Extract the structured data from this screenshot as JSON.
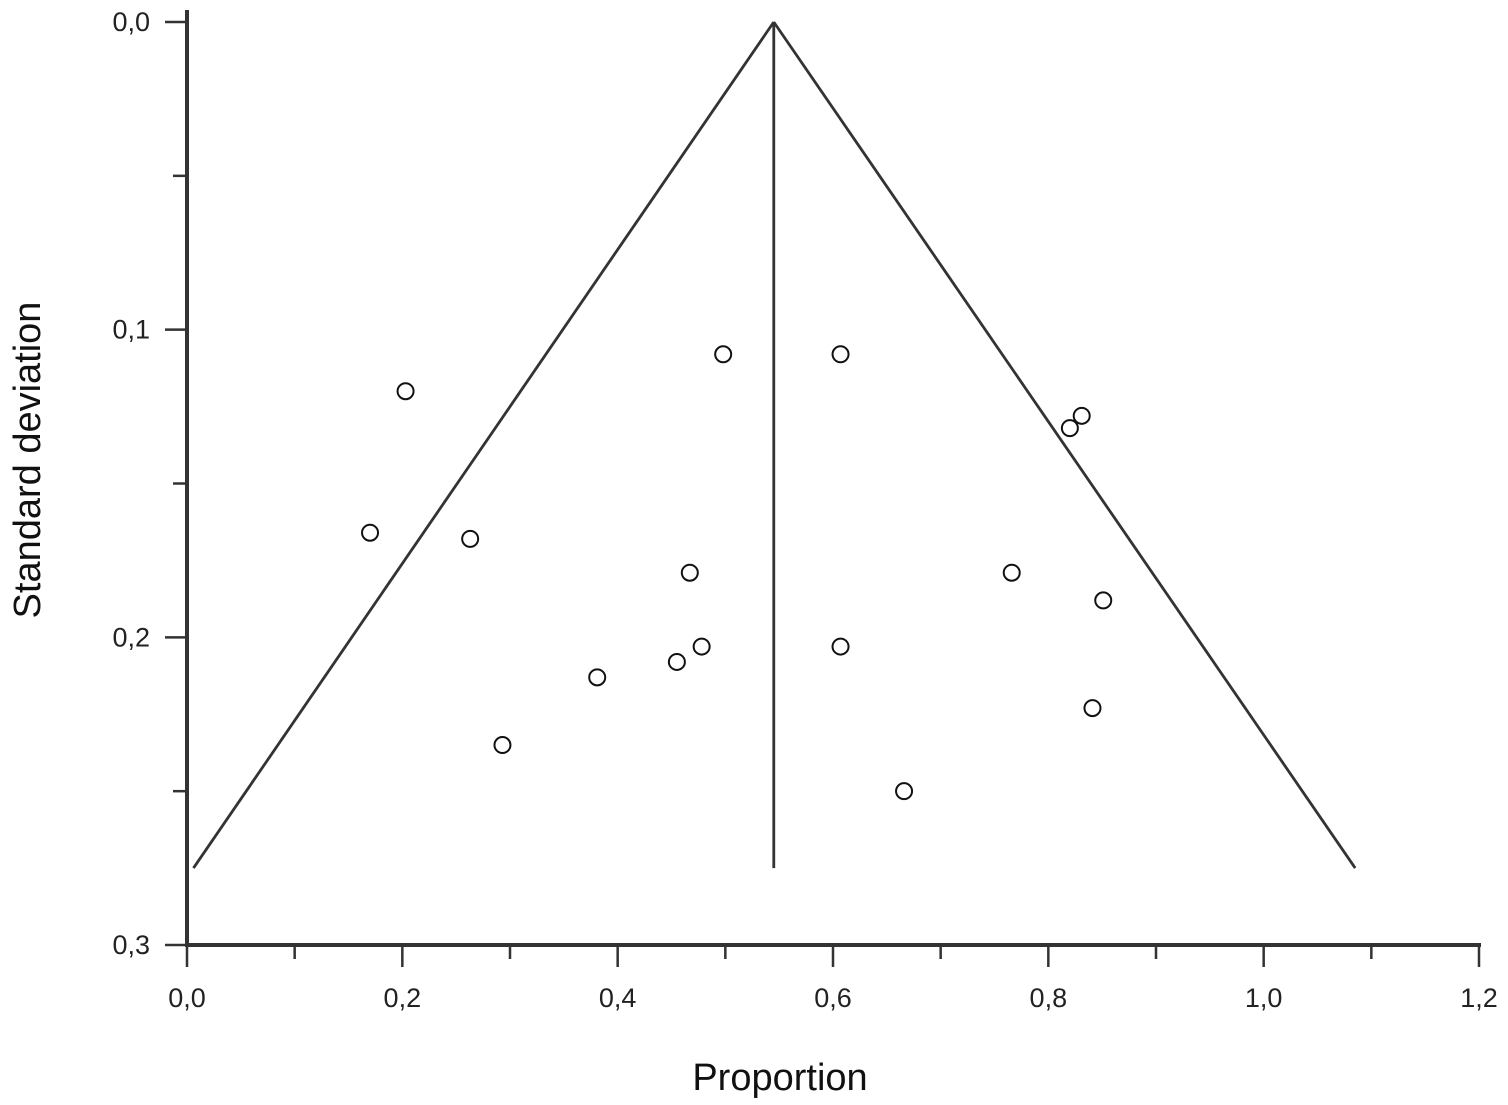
{
  "chart_data": {
    "type": "scatter",
    "xlabel": "Proportion",
    "ylabel": "Standard deviation",
    "xlim": [
      0.0,
      1.2
    ],
    "ylim": [
      0.3,
      0.0
    ],
    "y_inverted": true,
    "x_ticks": [
      "0,0",
      "0,2",
      "0,4",
      "0,6",
      "0,8",
      "1,0",
      "1,2"
    ],
    "x_tick_values": [
      0.0,
      0.2,
      0.4,
      0.6,
      0.8,
      1.0,
      1.2
    ],
    "y_ticks": [
      "0,0",
      "0,1",
      "0,2",
      "0,3"
    ],
    "y_tick_values": [
      0.0,
      0.1,
      0.2,
      0.3
    ],
    "grid": false,
    "pooled_estimate": 0.545,
    "funnel": {
      "apex": [
        0.545,
        0.0
      ],
      "left_base": [
        0.006,
        0.275
      ],
      "right_base": [
        1.085,
        0.275
      ],
      "center_line": [
        [
          0.545,
          0.0
        ],
        [
          0.545,
          0.275
        ]
      ]
    },
    "points": [
      {
        "x": 0.498,
        "y": 0.108
      },
      {
        "x": 0.607,
        "y": 0.108
      },
      {
        "x": 0.203,
        "y": 0.12
      },
      {
        "x": 0.831,
        "y": 0.128
      },
      {
        "x": 0.82,
        "y": 0.132
      },
      {
        "x": 0.17,
        "y": 0.166
      },
      {
        "x": 0.263,
        "y": 0.168
      },
      {
        "x": 0.467,
        "y": 0.179
      },
      {
        "x": 0.766,
        "y": 0.179
      },
      {
        "x": 0.851,
        "y": 0.188
      },
      {
        "x": 0.478,
        "y": 0.203
      },
      {
        "x": 0.607,
        "y": 0.203
      },
      {
        "x": 0.455,
        "y": 0.208
      },
      {
        "x": 0.381,
        "y": 0.213
      },
      {
        "x": 0.841,
        "y": 0.223
      },
      {
        "x": 0.293,
        "y": 0.235
      },
      {
        "x": 0.666,
        "y": 0.25
      }
    ]
  }
}
